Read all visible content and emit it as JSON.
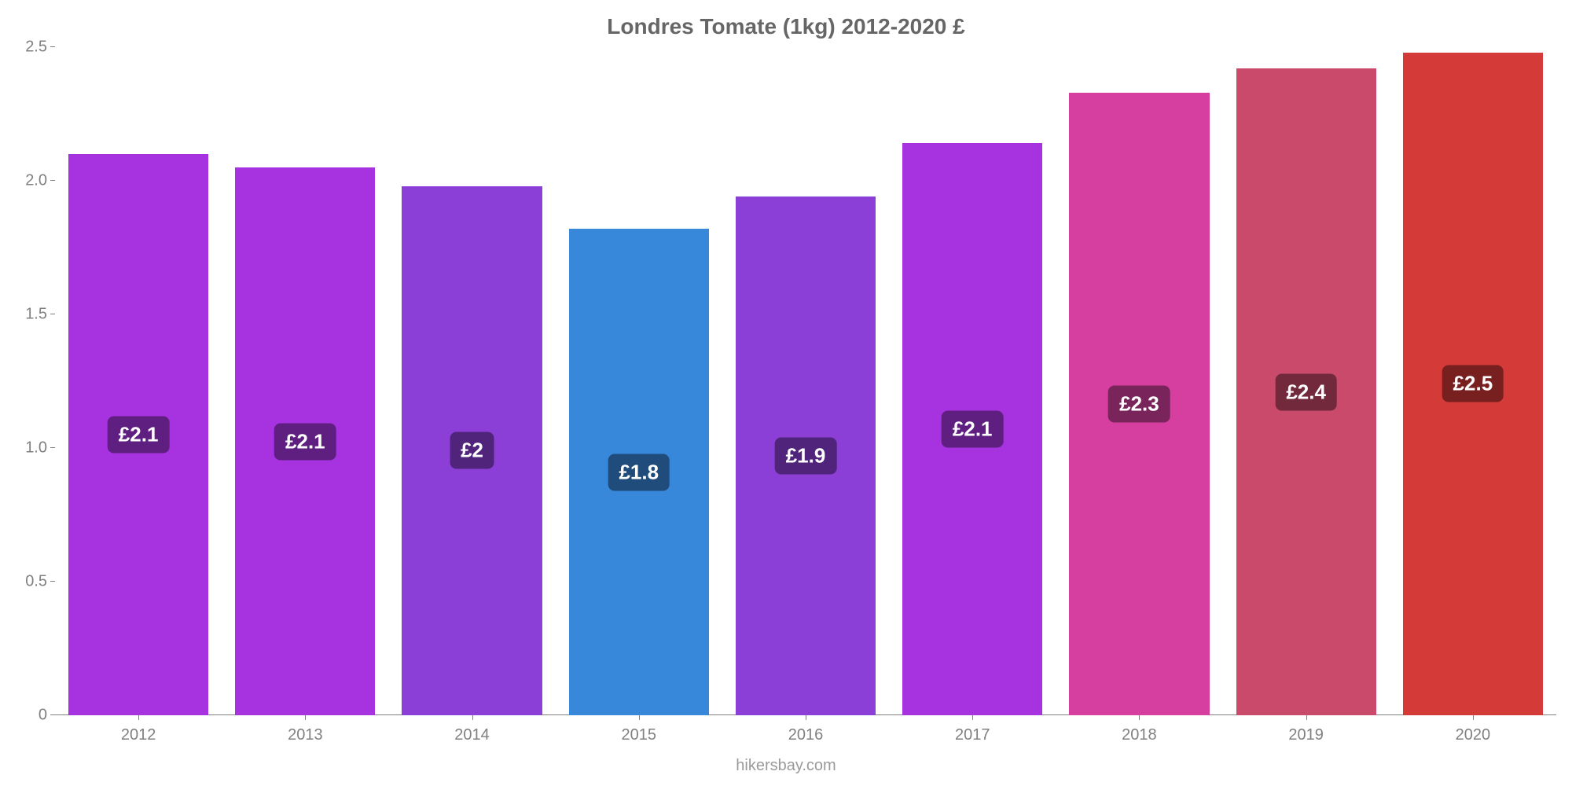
{
  "chart": {
    "type": "bar",
    "title": "Londres Tomate (1kg) 2012-2020 £",
    "title_fontsize": 28,
    "title_color": "#666666",
    "background_color": "#ffffff",
    "axis_color": "#808080",
    "tick_label_color": "#808080",
    "tick_label_fontsize": 20,
    "categories": [
      "2012",
      "2013",
      "2014",
      "2015",
      "2016",
      "2017",
      "2018",
      "2019",
      "2020"
    ],
    "values": [
      2.1,
      2.05,
      1.98,
      1.82,
      1.94,
      2.14,
      2.33,
      2.42,
      2.48
    ],
    "value_labels": [
      "£2.1",
      "£2.1",
      "£2",
      "£1.8",
      "£1.9",
      "£2.1",
      "£2.3",
      "£2.4",
      "£2.5"
    ],
    "bar_colors": [
      "#a733e0",
      "#a733e0",
      "#8b3fd6",
      "#3787db",
      "#8b3fd6",
      "#a733e0",
      "#d63fa0",
      "#c94a6a",
      "#d43a37"
    ],
    "bar_label_bg": [
      "#5f1f80",
      "#5f1f80",
      "#4f247a",
      "#1f4c7a",
      "#4f247a",
      "#5f1f80",
      "#7a245c",
      "#72293c",
      "#78201f"
    ],
    "bar_label_color": "#ffffff",
    "bar_label_fontsize": 26,
    "bar_width": 0.84,
    "ylim": [
      0,
      2.5
    ],
    "yticks": [
      0,
      0.5,
      1.0,
      1.5,
      2.0,
      2.5
    ],
    "ytick_labels": [
      "0",
      "0.5",
      "1.0",
      "1.5",
      "2.0",
      "2.5"
    ],
    "attribution": "hikersbay.com",
    "attribution_color": "#9a9a9a",
    "attribution_fontsize": 20
  }
}
